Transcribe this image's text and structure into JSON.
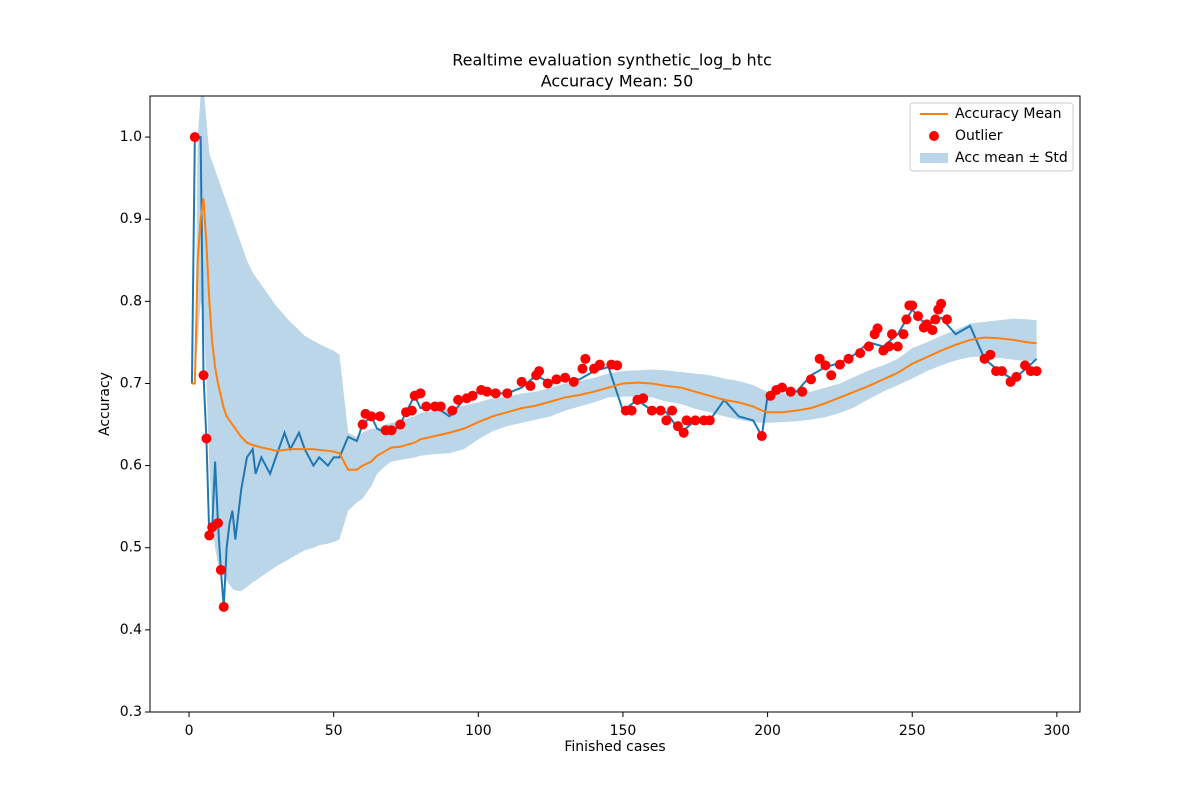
{
  "chart_data": {
    "type": "line",
    "title": "Realtime evaluation synthetic_log_b htc",
    "subtitle": "Accuracy Mean: 50",
    "x_label": "Finished cases",
    "y_label": "Accuracy",
    "xlim": [
      -13.5,
      308
    ],
    "ylim": [
      0.3,
      1.05
    ],
    "xticks": [
      0,
      50,
      100,
      150,
      200,
      250,
      300
    ],
    "yticks": [
      0.3,
      0.4,
      0.5,
      0.6,
      0.7,
      0.8,
      0.9,
      {
        "value": 1.0,
        "label": "1.0"
      }
    ],
    "legend": "upper right",
    "x": [
      1,
      2,
      3,
      4,
      5,
      6,
      7,
      8,
      9,
      10,
      11,
      12,
      13,
      14,
      15,
      16,
      18,
      20,
      22,
      23,
      25,
      28,
      30,
      33,
      35,
      38,
      40,
      43,
      45,
      48,
      50,
      52,
      55,
      58,
      60,
      63,
      65,
      68,
      70,
      73,
      75,
      78,
      80,
      85,
      90,
      95,
      100,
      105,
      110,
      115,
      120,
      125,
      130,
      135,
      140,
      145,
      150,
      155,
      160,
      165,
      170,
      175,
      180,
      185,
      190,
      195,
      198,
      200,
      205,
      210,
      215,
      220,
      225,
      230,
      235,
      240,
      245,
      250,
      255,
      260,
      265,
      270,
      275,
      280,
      285,
      290,
      293
    ],
    "series": [
      {
        "color": "#1f77b4",
        "values": [
          0.7,
          1.0,
          1.0,
          1.0,
          0.71,
          0.633,
          0.515,
          0.525,
          0.605,
          0.53,
          0.473,
          0.428,
          0.5,
          0.53,
          0.545,
          0.51,
          0.57,
          0.61,
          0.62,
          0.59,
          0.61,
          0.59,
          0.61,
          0.64,
          0.62,
          0.64,
          0.62,
          0.6,
          0.61,
          0.6,
          0.61,
          0.61,
          0.635,
          0.63,
          0.65,
          0.66,
          0.645,
          0.64,
          0.64,
          0.65,
          0.665,
          0.685,
          0.67,
          0.672,
          0.66,
          0.68,
          0.69,
          0.688,
          0.688,
          0.695,
          0.71,
          0.7,
          0.705,
          0.705,
          0.715,
          0.72,
          0.667,
          0.68,
          0.667,
          0.665,
          0.64,
          0.655,
          0.655,
          0.68,
          0.66,
          0.655,
          0.636,
          0.685,
          0.695,
          0.69,
          0.71,
          0.72,
          0.725,
          0.735,
          0.75,
          0.745,
          0.76,
          0.79,
          0.77,
          0.78,
          0.76,
          0.77,
          0.73,
          0.715,
          0.705,
          0.72,
          0.73
        ]
      },
      {
        "name": "Accuracy Mean",
        "color": "#ff7f0e",
        "values": [
          0.7,
          0.7,
          0.85,
          0.9,
          0.925,
          0.87,
          0.8,
          0.75,
          0.72,
          0.7,
          0.685,
          0.67,
          0.66,
          0.655,
          0.65,
          0.645,
          0.635,
          0.628,
          0.625,
          0.624,
          0.622,
          0.62,
          0.618,
          0.619,
          0.62,
          0.62,
          0.62,
          0.62,
          0.619,
          0.618,
          0.617,
          0.615,
          0.595,
          0.595,
          0.6,
          0.605,
          0.612,
          0.618,
          0.622,
          0.623,
          0.625,
          0.628,
          0.632,
          0.636,
          0.64,
          0.645,
          0.653,
          0.66,
          0.665,
          0.67,
          0.673,
          0.678,
          0.683,
          0.686,
          0.69,
          0.695,
          0.7,
          0.701,
          0.7,
          0.697,
          0.695,
          0.69,
          0.685,
          0.68,
          0.677,
          0.672,
          0.667,
          0.665,
          0.665,
          0.667,
          0.67,
          0.676,
          0.683,
          0.69,
          0.697,
          0.705,
          0.713,
          0.724,
          0.732,
          0.74,
          0.747,
          0.753,
          0.756,
          0.755,
          0.753,
          0.75,
          0.749
        ]
      }
    ],
    "band": {
      "name": "Acc mean ± Std",
      "color": "#1f77b4",
      "lower": [
        0.7,
        0.7,
        0.75,
        0.8,
        0.78,
        0.7,
        0.6,
        0.53,
        0.5,
        0.48,
        0.47,
        0.465,
        0.46,
        0.455,
        0.45,
        0.448,
        0.447,
        0.452,
        0.458,
        0.46,
        0.465,
        0.472,
        0.477,
        0.483,
        0.487,
        0.493,
        0.497,
        0.5,
        0.503,
        0.505,
        0.507,
        0.51,
        0.545,
        0.555,
        0.56,
        0.575,
        0.59,
        0.6,
        0.605,
        0.607,
        0.608,
        0.61,
        0.612,
        0.614,
        0.615,
        0.62,
        0.632,
        0.642,
        0.648,
        0.652,
        0.656,
        0.66,
        0.667,
        0.672,
        0.677,
        0.683,
        0.684,
        0.684,
        0.683,
        0.678,
        0.675,
        0.669,
        0.665,
        0.66,
        0.656,
        0.653,
        0.652,
        0.652,
        0.653,
        0.654,
        0.656,
        0.659,
        0.664,
        0.671,
        0.681,
        0.69,
        0.698,
        0.706,
        0.715,
        0.722,
        0.728,
        0.732,
        0.733,
        0.731,
        0.729,
        0.727,
        0.727
      ],
      "upper": [
        0.7,
        0.7,
        1.0,
        1.05,
        1.06,
        1.02,
        0.98,
        0.97,
        0.96,
        0.95,
        0.94,
        0.93,
        0.92,
        0.91,
        0.9,
        0.89,
        0.87,
        0.85,
        0.835,
        0.83,
        0.82,
        0.805,
        0.795,
        0.783,
        0.775,
        0.765,
        0.758,
        0.752,
        0.748,
        0.743,
        0.74,
        0.735,
        0.64,
        0.635,
        0.64,
        0.645,
        0.645,
        0.65,
        0.652,
        0.655,
        0.657,
        0.66,
        0.664,
        0.667,
        0.67,
        0.673,
        0.677,
        0.682,
        0.684,
        0.688,
        0.69,
        0.695,
        0.7,
        0.703,
        0.707,
        0.712,
        0.715,
        0.716,
        0.717,
        0.716,
        0.714,
        0.712,
        0.71,
        0.706,
        0.703,
        0.698,
        0.693,
        0.69,
        0.688,
        0.688,
        0.69,
        0.695,
        0.7,
        0.708,
        0.716,
        0.722,
        0.73,
        0.743,
        0.75,
        0.758,
        0.765,
        0.773,
        0.775,
        0.777,
        0.779,
        0.778,
        0.777
      ]
    },
    "outliers": {
      "name": "Outlier",
      "color": "#ff0000",
      "x": [
        2,
        5,
        6,
        7,
        8,
        10,
        11,
        12,
        60,
        61,
        63,
        66,
        68,
        70,
        73,
        75,
        77,
        78,
        80,
        82,
        85,
        87,
        91,
        93,
        96,
        98,
        101,
        103,
        106,
        110,
        115,
        118,
        120,
        121,
        124,
        127,
        130,
        133,
        136,
        137,
        140,
        142,
        146,
        148,
        151,
        153,
        155,
        157,
        160,
        163,
        165,
        167,
        169,
        171,
        172,
        175,
        178,
        180,
        198,
        201,
        203,
        205,
        208,
        212,
        215,
        218,
        220,
        222,
        225,
        228,
        232,
        235,
        237,
        238,
        240,
        242,
        243,
        245,
        247,
        248,
        249,
        250,
        252,
        254,
        255,
        257,
        258,
        259,
        260,
        262,
        275,
        277,
        279,
        281,
        284,
        286,
        289,
        291,
        293
      ],
      "values": [
        1.0,
        0.71,
        0.633,
        0.515,
        0.525,
        0.53,
        0.473,
        0.428,
        0.65,
        0.663,
        0.66,
        0.66,
        0.643,
        0.643,
        0.65,
        0.665,
        0.667,
        0.685,
        0.688,
        0.672,
        0.672,
        0.672,
        0.667,
        0.68,
        0.682,
        0.685,
        0.692,
        0.69,
        0.688,
        0.688,
        0.702,
        0.697,
        0.71,
        0.715,
        0.7,
        0.705,
        0.707,
        0.702,
        0.718,
        0.73,
        0.718,
        0.723,
        0.723,
        0.722,
        0.667,
        0.667,
        0.68,
        0.682,
        0.667,
        0.667,
        0.655,
        0.667,
        0.648,
        0.64,
        0.655,
        0.655,
        0.655,
        0.655,
        0.636,
        0.685,
        0.692,
        0.695,
        0.69,
        0.69,
        0.705,
        0.73,
        0.722,
        0.71,
        0.723,
        0.73,
        0.737,
        0.745,
        0.76,
        0.767,
        0.74,
        0.745,
        0.76,
        0.745,
        0.76,
        0.778,
        0.795,
        0.795,
        0.782,
        0.768,
        0.772,
        0.765,
        0.778,
        0.79,
        0.797,
        0.778,
        0.73,
        0.735,
        0.715,
        0.715,
        0.702,
        0.708,
        0.722,
        0.715,
        0.715
      ]
    }
  }
}
